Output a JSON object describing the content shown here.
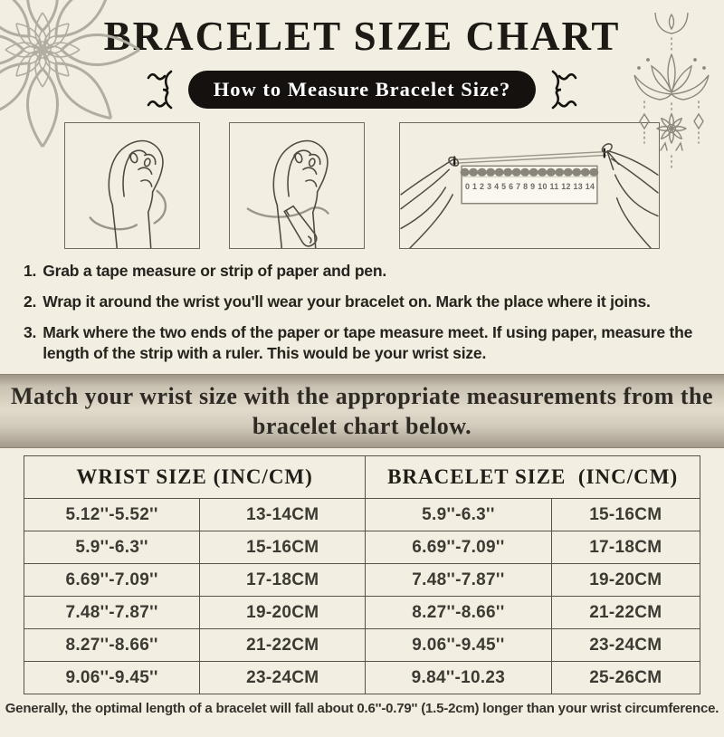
{
  "title": "BRACELET SIZE CHART",
  "subtitle_pill": "How to Measure Bracelet Size?",
  "illustrations": {
    "ruler_numbers": "0 1 2 3 4 5 6 7 8 9 10 11 12 13 14"
  },
  "instructions": {
    "steps": [
      {
        "num": "1.",
        "text": "Grab a tape measure or strip of paper and pen."
      },
      {
        "num": "2.",
        "text": "Wrap it around the wrist you'll wear your bracelet on. Mark the place where it joins."
      },
      {
        "num": "3.",
        "text": "Mark where the two ends of the paper or tape measure meet. If using paper, measure the length of the strip with a ruler. This would be your wrist size."
      }
    ]
  },
  "banner": {
    "text": "Match your wrist size with the appropriate measurements from the bracelet chart below."
  },
  "table": {
    "headers": [
      "WRIST SIZE (INC/CM)",
      "BRACELET SIZE  (INC/CM)"
    ],
    "rows": [
      [
        "5.12''-5.52''",
        "13-14CM",
        "5.9''-6.3''",
        "15-16CM"
      ],
      [
        "5.9''-6.3''",
        "15-16CM",
        "6.69''-7.09''",
        "17-18CM"
      ],
      [
        "6.69''-7.09''",
        "17-18CM",
        "7.48''-7.87''",
        "19-20CM"
      ],
      [
        "7.48''-7.87''",
        "19-20CM",
        "8.27''-8.66''",
        "21-22CM"
      ],
      [
        "8.27''-8.66''",
        "21-22CM",
        "9.06''-9.45''",
        "23-24CM"
      ],
      [
        "9.06''-9.45''",
        "23-24CM",
        "9.84''-10.23",
        "25-26CM"
      ]
    ]
  },
  "footer": {
    "text": "Generally, the optimal length of a bracelet will fall about 0.6''-0.79'' (1.5-2cm) longer than your wrist circumference."
  },
  "colors": {
    "background": "#f3eee2",
    "ink": "#1d1a16",
    "pill_bg": "#14110e",
    "pill_text": "#ffffff",
    "line_art": "#4f4b44",
    "tape": "#9a9489",
    "decor": "#aaa49a",
    "table_border": "#56524a",
    "banner_text": "#2e2a24",
    "body_text": "#36322c"
  }
}
